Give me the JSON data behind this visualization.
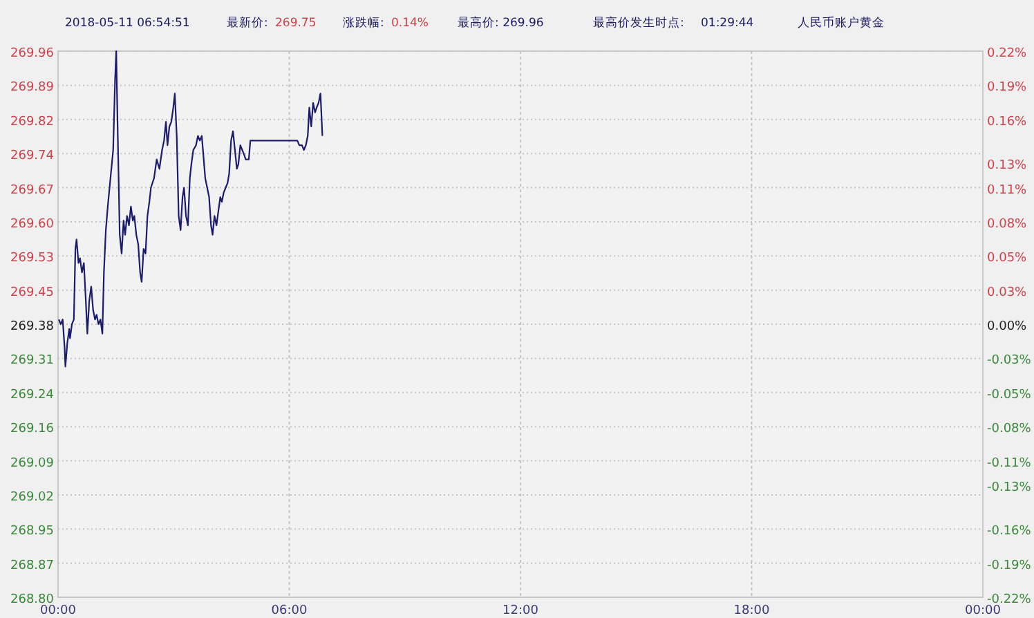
{
  "chart_data": {
    "type": "line",
    "title": "人民币账户黄金",
    "annotations": [
      "2018-05-11 06:54:51",
      "最新价:",
      "269.75",
      "涨跌幅:",
      "0.14%",
      "最高价: 269.96",
      "最高价发生时点:",
      "01:29:44"
    ],
    "series": [
      {
        "color": "#1c1c6e",
        "x": [
          0.02,
          0.07,
          0.12,
          0.17,
          0.19,
          0.24,
          0.29,
          0.31,
          0.36,
          0.41,
          0.45,
          0.48,
          0.53,
          0.57,
          0.62,
          0.67,
          0.72,
          0.76,
          0.81,
          0.86,
          0.91,
          0.96,
          1.0,
          1.05,
          1.1,
          1.15,
          1.19,
          1.24,
          1.29,
          1.36,
          1.43,
          1.48,
          1.51,
          1.55,
          1.6,
          1.65,
          1.7,
          1.74,
          1.79,
          1.84,
          1.89,
          1.94,
          1.98,
          2.03,
          2.08,
          2.13,
          2.17,
          2.22,
          2.27,
          2.32,
          2.37,
          2.41,
          2.49,
          2.56,
          2.63,
          2.7,
          2.75,
          2.8,
          2.84,
          2.89,
          2.94,
          2.99,
          3.03,
          3.08,
          3.13,
          3.18,
          3.23,
          3.27,
          3.32,
          3.37,
          3.42,
          3.46,
          3.51,
          3.58,
          3.63,
          3.68,
          3.73,
          3.78,
          3.82,
          3.87,
          3.92,
          3.97,
          4.01,
          4.06,
          4.11,
          4.16,
          4.21,
          4.25,
          4.3,
          4.35,
          4.4,
          4.44,
          4.49,
          4.54,
          4.59,
          4.64,
          4.68,
          4.73,
          4.78,
          4.83,
          4.87,
          4.95,
          4.99,
          5.3,
          5.66,
          5.97,
          6.02,
          6.07,
          6.12,
          6.16,
          6.21,
          6.26,
          6.33,
          6.38,
          6.43,
          6.48,
          6.52,
          6.57,
          6.62,
          6.67,
          6.71,
          6.76,
          6.81,
          6.86
        ],
        "values": [
          269.39,
          269.38,
          269.39,
          269.33,
          269.29,
          269.34,
          269.37,
          269.35,
          269.38,
          269.39,
          269.54,
          269.56,
          269.51,
          269.52,
          269.49,
          269.51,
          269.43,
          269.36,
          269.43,
          269.46,
          269.41,
          269.39,
          269.4,
          269.38,
          269.39,
          269.36,
          269.49,
          269.58,
          269.63,
          269.69,
          269.75,
          269.9,
          269.96,
          269.78,
          269.57,
          269.53,
          269.6,
          269.57,
          269.61,
          269.59,
          269.63,
          269.6,
          269.61,
          269.57,
          269.55,
          269.49,
          269.47,
          269.54,
          269.53,
          269.61,
          269.64,
          269.67,
          269.69,
          269.73,
          269.71,
          269.75,
          269.77,
          269.81,
          269.76,
          269.8,
          269.81,
          269.84,
          269.87,
          269.78,
          269.61,
          269.58,
          269.65,
          269.67,
          269.61,
          269.59,
          269.69,
          269.72,
          269.75,
          269.76,
          269.78,
          269.77,
          269.78,
          269.73,
          269.69,
          269.67,
          269.65,
          269.59,
          269.57,
          269.61,
          269.59,
          269.62,
          269.65,
          269.64,
          269.66,
          269.67,
          269.68,
          269.7,
          269.77,
          269.79,
          269.75,
          269.71,
          269.72,
          269.76,
          269.75,
          269.74,
          269.73,
          269.73,
          269.77,
          269.77,
          269.77,
          269.77,
          269.77,
          269.77,
          269.77,
          269.77,
          269.77,
          269.76,
          269.76,
          269.75,
          269.76,
          269.78,
          269.84,
          269.8,
          269.85,
          269.83,
          269.84,
          269.85,
          269.87,
          269.78
        ]
      }
    ],
    "xlim": [
      0,
      24
    ],
    "xticks": [
      {
        "value": 0,
        "label": "00:00"
      },
      {
        "value": 6,
        "label": "06:00"
      },
      {
        "value": 12,
        "label": "12:00"
      },
      {
        "value": 18,
        "label": "18:00"
      },
      {
        "value": 24,
        "label": "00:00"
      }
    ],
    "ylim": [
      268.8,
      269.96
    ],
    "yticks": [
      {
        "value": 268.8,
        "label": "268.80"
      },
      {
        "value": 268.8725,
        "label": "268.87"
      },
      {
        "value": 268.945,
        "label": "268.95"
      },
      {
        "value": 269.0175,
        "label": "269.02"
      },
      {
        "value": 269.09,
        "label": "269.09"
      },
      {
        "value": 269.1625,
        "label": "269.16"
      },
      {
        "value": 269.235,
        "label": "269.24"
      },
      {
        "value": 269.3075,
        "label": "269.31"
      },
      {
        "value": 269.38,
        "label": "269.38"
      },
      {
        "value": 269.4525,
        "label": "269.45"
      },
      {
        "value": 269.525,
        "label": "269.53"
      },
      {
        "value": 269.5975,
        "label": "269.60"
      },
      {
        "value": 269.67,
        "label": "269.67"
      },
      {
        "value": 269.7425,
        "label": "269.74"
      },
      {
        "value": 269.815,
        "label": "269.82"
      },
      {
        "value": 269.8875,
        "label": "269.89"
      },
      {
        "value": 269.96,
        "label": "269.96"
      }
    ],
    "y2lim": [
      -0.22,
      0.22
    ],
    "y2ticks": [
      {
        "value": -0.22,
        "label": "-0.22%"
      },
      {
        "value": -0.1925,
        "label": "-0.19%"
      },
      {
        "value": -0.165,
        "label": "-0.16%"
      },
      {
        "value": -0.13,
        "label": "-0.13%"
      },
      {
        "value": -0.11,
        "label": "-0.11%"
      },
      {
        "value": -0.0825,
        "label": "-0.08%"
      },
      {
        "value": -0.055,
        "label": "-0.05%"
      },
      {
        "value": -0.0275,
        "label": "-0.03%"
      },
      {
        "value": 0,
        "label": "0.00%"
      },
      {
        "value": 0.0275,
        "label": "0.03%"
      },
      {
        "value": 0.055,
        "label": "0.05%"
      },
      {
        "value": 0.0825,
        "label": "0.08%"
      },
      {
        "value": 0.11,
        "label": "0.11%"
      },
      {
        "value": 0.13,
        "label": "0.13%"
      },
      {
        "value": 0.165,
        "label": "0.16%"
      },
      {
        "value": 0.1925,
        "label": "0.19%"
      },
      {
        "value": 0.22,
        "label": "0.22%"
      }
    ],
    "grid": true
  }
}
